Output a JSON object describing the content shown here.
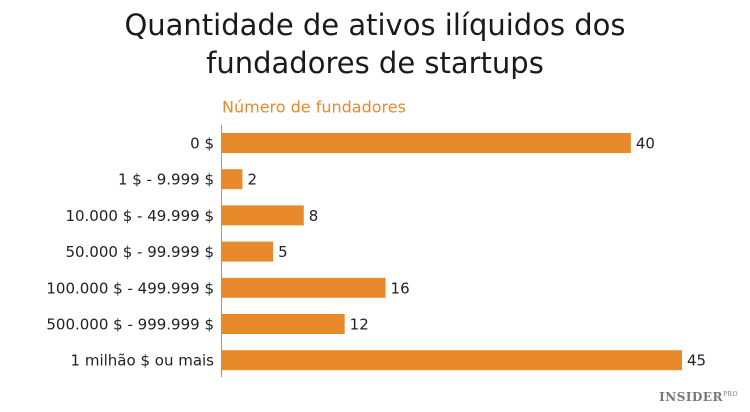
{
  "chart_data": {
    "type": "bar",
    "orientation": "horizontal",
    "title": "Quantidade de ativos ilíquidos dos fundadores de startups",
    "subtitle": "Número de fundadores",
    "categories": [
      "0 $",
      "1 $ - 9.999 $",
      "10.000 $ - 49.999 $",
      "50.000 $ - 99.999 $",
      "100.000 $ - 499.999 $",
      "500.000 $ - 999.999 $",
      "1 milhão $ ou mais"
    ],
    "values": [
      40,
      2,
      8,
      5,
      16,
      12,
      45
    ],
    "color": "#e8892b",
    "xlim": [
      0,
      45
    ]
  },
  "watermark": {
    "name": "INSIDER",
    "tag": "PRO"
  }
}
